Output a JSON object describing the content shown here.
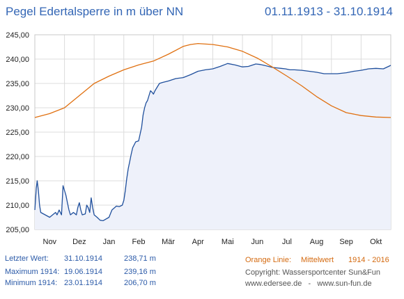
{
  "header": {
    "title": "Pegel Edertalsperre in m über NN",
    "period": "01.11.1913 - 31.10.1914"
  },
  "colors": {
    "title": "#3366b5",
    "level_line": "#1f4f9c",
    "level_fill": "#eef1fa",
    "mean_line": "#e07010",
    "grid": "#dcdcdc",
    "axis_text": "#222222"
  },
  "stats": {
    "last_label": "Letzter Wert:",
    "last_date": "31.10.1914",
    "last_value": "238,71 m",
    "max_label": "Maximum 1914:",
    "max_date": "19.06.1914",
    "max_value": "239,16 m",
    "min_label": "Minimum 1914:",
    "min_date": "23.01.1914",
    "min_value": "206,70 m"
  },
  "legend": {
    "orange_label": "Orange Linie:",
    "orange_text": "Mittelwert",
    "orange_years": "1914 - 2016",
    "copyright": "Copyright: Wassersportcenter Sun&Fun",
    "website": "www.edersee.de   -   www.sun-fun.de"
  },
  "chart_data": {
    "type": "line",
    "x_unit": "month",
    "x_start": 0,
    "x_end": 12,
    "xticks": [
      "Nov",
      "Dez",
      "Jan",
      "Feb",
      "Mär",
      "Apr",
      "Mai",
      "Jun",
      "Jul",
      "Aug",
      "Sep",
      "Okt"
    ],
    "ylim": [
      205,
      245
    ],
    "yticks": [
      "205,00",
      "210,00",
      "215,00",
      "220,00",
      "225,00",
      "230,00",
      "235,00",
      "240,00",
      "245,00"
    ],
    "ytick_values": [
      205,
      210,
      215,
      220,
      225,
      230,
      235,
      240,
      245
    ],
    "grid": true,
    "series": [
      {
        "name": "Pegel 1914",
        "color": "#1f4f9c",
        "filled": true,
        "x": [
          0.0,
          0.05,
          0.08,
          0.12,
          0.16,
          0.2,
          0.35,
          0.5,
          0.6,
          0.7,
          0.75,
          0.82,
          0.86,
          0.9,
          0.95,
          1.0,
          1.05,
          1.1,
          1.15,
          1.2,
          1.3,
          1.4,
          1.45,
          1.5,
          1.55,
          1.6,
          1.7,
          1.75,
          1.8,
          1.85,
          1.9,
          1.95,
          2.0,
          2.1,
          2.2,
          2.3,
          2.5,
          2.6,
          2.75,
          2.85,
          2.95,
          3.0,
          3.05,
          3.1,
          3.15,
          3.2,
          3.25,
          3.3,
          3.4,
          3.5,
          3.6,
          3.65,
          3.7,
          3.75,
          3.8,
          3.85,
          3.9,
          3.95,
          4.0,
          4.05,
          4.1,
          4.2,
          4.3,
          4.5,
          4.75,
          5.0,
          5.25,
          5.5,
          5.75,
          6.0,
          6.25,
          6.5,
          6.75,
          7.0,
          7.2,
          7.45,
          7.6,
          7.75,
          8.0,
          8.15,
          8.3,
          8.45,
          8.6,
          8.75,
          9.0,
          9.25,
          9.5,
          9.75,
          10.0,
          10.2,
          10.5,
          10.75,
          11.0,
          11.25,
          11.5,
          11.75,
          12.0
        ],
        "values": [
          209.0,
          213.5,
          215.0,
          213.0,
          210.0,
          208.5,
          208.0,
          207.5,
          208.0,
          208.5,
          208.0,
          209.0,
          208.5,
          208.0,
          214.0,
          213.0,
          212.0,
          210.5,
          209.0,
          208.0,
          208.5,
          208.0,
          209.5,
          210.5,
          209.0,
          208.0,
          208.2,
          210.0,
          209.5,
          208.5,
          211.5,
          209.5,
          208.0,
          207.5,
          206.9,
          206.8,
          207.5,
          209.0,
          209.8,
          209.7,
          210.0,
          211.0,
          213.0,
          215.5,
          217.5,
          219.0,
          220.5,
          221.8,
          223.0,
          223.2,
          226.0,
          228.5,
          230.0,
          231.0,
          231.5,
          232.5,
          233.5,
          233.2,
          232.8,
          233.5,
          234.0,
          235.0,
          235.2,
          235.5,
          236.0,
          236.2,
          236.8,
          237.5,
          237.8,
          238.0,
          238.5,
          239.1,
          238.8,
          238.4,
          238.5,
          239.0,
          238.9,
          238.7,
          238.3,
          238.2,
          238.1,
          238.0,
          237.8,
          237.8,
          237.7,
          237.5,
          237.3,
          237.0,
          237.0,
          237.0,
          237.2,
          237.5,
          237.7,
          238.0,
          238.1,
          238.0,
          238.71
        ]
      },
      {
        "name": "Mittelwert 1914 - 2016",
        "color": "#e07010",
        "filled": false,
        "x": [
          0,
          0.5,
          1,
          1.5,
          2,
          2.5,
          3,
          3.5,
          4,
          4.5,
          5,
          5.25,
          5.5,
          6,
          6.5,
          7,
          7.5,
          8,
          8.5,
          9,
          9.5,
          10,
          10.5,
          11,
          11.5,
          12
        ],
        "values": [
          228.0,
          228.8,
          230.0,
          232.5,
          235.0,
          236.5,
          237.8,
          238.8,
          239.6,
          241.0,
          242.6,
          243.0,
          243.2,
          243.0,
          242.5,
          241.6,
          240.2,
          238.4,
          236.5,
          234.5,
          232.3,
          230.4,
          229.0,
          228.4,
          228.1,
          228.0
        ]
      }
    ]
  }
}
